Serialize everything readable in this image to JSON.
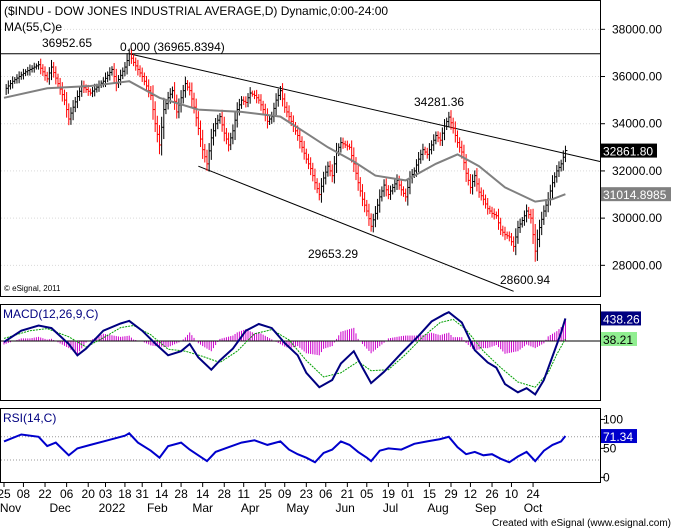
{
  "chart_data": {
    "type": "line",
    "title": "($INDU - DOW JONES INDUSTRIAL AVERAGE,D) Dynamic,0:00-24:00",
    "price_panel": {
      "ma_label": "MA(55,C)e",
      "ylim": [
        26700,
        39200
      ],
      "yticks": [
        28000,
        30000,
        32000,
        34000,
        36000,
        38000
      ],
      "ytick_labels": [
        "28000.00",
        "30000.00",
        "32000.00",
        "34000.00",
        "36000.00",
        "38000.00"
      ],
      "price_path": [
        [
          0,
          35400
        ],
        [
          4,
          35800
        ],
        [
          10,
          36200
        ],
        [
          16,
          36500
        ],
        [
          20,
          35900
        ],
        [
          22,
          36400
        ],
        [
          28,
          35000
        ],
        [
          30,
          34200
        ],
        [
          32,
          34700
        ],
        [
          36,
          35600
        ],
        [
          40,
          35300
        ],
        [
          46,
          35800
        ],
        [
          50,
          36300
        ],
        [
          52,
          35700
        ],
        [
          56,
          36400
        ],
        [
          58,
          36952.65
        ],
        [
          60,
          36600
        ],
        [
          64,
          36000
        ],
        [
          68,
          35200
        ],
        [
          70,
          34000
        ],
        [
          72,
          33100
        ],
        [
          74,
          34600
        ],
        [
          76,
          35100
        ],
        [
          78,
          35400
        ],
        [
          80,
          34500
        ],
        [
          82,
          35100
        ],
        [
          84,
          35700
        ],
        [
          86,
          35400
        ],
        [
          88,
          34700
        ],
        [
          90,
          33800
        ],
        [
          92,
          32900
        ],
        [
          94,
          32300
        ],
        [
          96,
          33400
        ],
        [
          98,
          34000
        ],
        [
          100,
          34300
        ],
        [
          102,
          33600
        ],
        [
          104,
          33100
        ],
        [
          106,
          33700
        ],
        [
          108,
          34600
        ],
        [
          110,
          35000
        ],
        [
          112,
          34900
        ],
        [
          114,
          35300
        ],
        [
          116,
          35200
        ],
        [
          118,
          35000
        ],
        [
          120,
          34600
        ],
        [
          122,
          34100
        ],
        [
          124,
          34300
        ],
        [
          126,
          35000
        ],
        [
          128,
          35400
        ],
        [
          130,
          34700
        ],
        [
          132,
          34300
        ],
        [
          134,
          33900
        ],
        [
          136,
          33500
        ],
        [
          138,
          33000
        ],
        [
          140,
          32500
        ],
        [
          142,
          32100
        ],
        [
          144,
          31500
        ],
        [
          146,
          31000
        ],
        [
          148,
          31700
        ],
        [
          150,
          32200
        ],
        [
          152,
          31800
        ],
        [
          154,
          32800
        ],
        [
          156,
          33200
        ],
        [
          158,
          33100
        ],
        [
          160,
          33000
        ],
        [
          162,
          32300
        ],
        [
          164,
          31500
        ],
        [
          166,
          30800
        ],
        [
          168,
          30300
        ],
        [
          170,
          29653.29
        ],
        [
          172,
          30200
        ],
        [
          174,
          30900
        ],
        [
          176,
          31400
        ],
        [
          178,
          31000
        ],
        [
          180,
          31300
        ],
        [
          182,
          31600
        ],
        [
          184,
          31200
        ],
        [
          186,
          30900
        ],
        [
          188,
          31700
        ],
        [
          190,
          32000
        ],
        [
          192,
          32500
        ],
        [
          194,
          32900
        ],
        [
          196,
          32700
        ],
        [
          198,
          33100
        ],
        [
          200,
          33500
        ],
        [
          202,
          33300
        ],
        [
          204,
          33900
        ],
        [
          206,
          34281.36
        ],
        [
          208,
          33800
        ],
        [
          210,
          33200
        ],
        [
          212,
          32800
        ],
        [
          214,
          31900
        ],
        [
          216,
          31300
        ],
        [
          218,
          31800
        ],
        [
          220,
          31100
        ],
        [
          222,
          30800
        ],
        [
          224,
          30400
        ],
        [
          226,
          30200
        ],
        [
          228,
          30100
        ],
        [
          230,
          29500
        ],
        [
          232,
          29300
        ],
        [
          234,
          29200
        ],
        [
          236,
          28800
        ],
        [
          238,
          29600
        ],
        [
          240,
          29900
        ],
        [
          242,
          30300
        ],
        [
          244,
          30000
        ],
        [
          246,
          28600.94
        ],
        [
          248,
          29600
        ],
        [
          250,
          30300
        ],
        [
          252,
          30800
        ],
        [
          254,
          31500
        ],
        [
          256,
          32000
        ],
        [
          258,
          32300
        ],
        [
          260,
          32861.8
        ]
      ],
      "ma_path": [
        [
          0,
          35100
        ],
        [
          20,
          35500
        ],
        [
          40,
          35600
        ],
        [
          58,
          35800
        ],
        [
          72,
          35100
        ],
        [
          90,
          34600
        ],
        [
          110,
          34500
        ],
        [
          128,
          34300
        ],
        [
          140,
          33600
        ],
        [
          150,
          33000
        ],
        [
          162,
          32400
        ],
        [
          172,
          31800
        ],
        [
          186,
          31600
        ],
        [
          200,
          32300
        ],
        [
          210,
          32700
        ],
        [
          220,
          32200
        ],
        [
          232,
          31300
        ],
        [
          246,
          30700
        ],
        [
          254,
          30800
        ],
        [
          260,
          31014.8985
        ]
      ],
      "current_price_label": "32861.80",
      "current_ma_label": "31014.8985",
      "annotations": [
        {
          "text": "36952.65"
        },
        {
          "text": "0.000 (36965.8394)"
        },
        {
          "text": "34281.36"
        },
        {
          "text": "29653.29"
        },
        {
          "text": "28600.94"
        }
      ],
      "hline_value": 36965.84,
      "upper_trendline": [
        [
          58,
          36965.84
        ],
        [
          276,
          32400
        ]
      ],
      "lower_trendline": [
        [
          90,
          32200
        ],
        [
          236,
          26900
        ]
      ],
      "credit_left": "© eSignal, 2011"
    },
    "macd_panel": {
      "label": "MACD(12,26,9,C)",
      "macd_value_label": "438.26",
      "signal_value_label": "38.21",
      "ylim": [
        -1150,
        700
      ],
      "macd_path": [
        [
          0,
          -20
        ],
        [
          8,
          200
        ],
        [
          16,
          300
        ],
        [
          22,
          250
        ],
        [
          30,
          -60
        ],
        [
          34,
          -280
        ],
        [
          38,
          -150
        ],
        [
          46,
          200
        ],
        [
          54,
          340
        ],
        [
          58,
          390
        ],
        [
          64,
          200
        ],
        [
          70,
          -50
        ],
        [
          76,
          -280
        ],
        [
          82,
          -200
        ],
        [
          86,
          -60
        ],
        [
          90,
          -320
        ],
        [
          96,
          -560
        ],
        [
          100,
          -380
        ],
        [
          106,
          -150
        ],
        [
          112,
          200
        ],
        [
          118,
          330
        ],
        [
          124,
          250
        ],
        [
          130,
          -40
        ],
        [
          136,
          -280
        ],
        [
          140,
          -620
        ],
        [
          146,
          -900
        ],
        [
          152,
          -760
        ],
        [
          156,
          -440
        ],
        [
          162,
          -200
        ],
        [
          166,
          -520
        ],
        [
          170,
          -820
        ],
        [
          176,
          -600
        ],
        [
          184,
          -240
        ],
        [
          192,
          100
        ],
        [
          198,
          380
        ],
        [
          204,
          520
        ],
        [
          206,
          560
        ],
        [
          212,
          360
        ],
        [
          218,
          -180
        ],
        [
          224,
          -420
        ],
        [
          228,
          -520
        ],
        [
          232,
          -840
        ],
        [
          238,
          -1000
        ],
        [
          242,
          -920
        ],
        [
          246,
          -1040
        ],
        [
          250,
          -760
        ],
        [
          254,
          -300
        ],
        [
          258,
          160
        ],
        [
          260,
          438.26
        ]
      ],
      "signal_path": [
        [
          0,
          50
        ],
        [
          12,
          200
        ],
        [
          20,
          240
        ],
        [
          30,
          80
        ],
        [
          38,
          -120
        ],
        [
          46,
          60
        ],
        [
          54,
          260
        ],
        [
          60,
          300
        ],
        [
          68,
          120
        ],
        [
          76,
          -160
        ],
        [
          84,
          -200
        ],
        [
          92,
          -300
        ],
        [
          100,
          -420
        ],
        [
          108,
          -200
        ],
        [
          116,
          140
        ],
        [
          124,
          220
        ],
        [
          132,
          20
        ],
        [
          140,
          -380
        ],
        [
          148,
          -700
        ],
        [
          156,
          -620
        ],
        [
          164,
          -400
        ],
        [
          170,
          -580
        ],
        [
          178,
          -560
        ],
        [
          186,
          -260
        ],
        [
          194,
          80
        ],
        [
          202,
          360
        ],
        [
          208,
          420
        ],
        [
          214,
          220
        ],
        [
          222,
          -200
        ],
        [
          230,
          -520
        ],
        [
          238,
          -800
        ],
        [
          246,
          -900
        ],
        [
          252,
          -620
        ],
        [
          256,
          -260
        ],
        [
          260,
          38.21
        ]
      ]
    },
    "rsi_panel": {
      "label": "RSI(14,C)",
      "value_label": "71.34",
      "ylim": [
        -8,
        118
      ],
      "yticks": [
        0,
        50,
        100
      ],
      "ytick_labels": [
        "0",
        "50",
        "100"
      ],
      "guide_levels": [
        30,
        70
      ],
      "rsi_path": [
        [
          0,
          62
        ],
        [
          8,
          74
        ],
        [
          16,
          70
        ],
        [
          20,
          54
        ],
        [
          24,
          60
        ],
        [
          30,
          38
        ],
        [
          34,
          50
        ],
        [
          40,
          56
        ],
        [
          48,
          64
        ],
        [
          56,
          72
        ],
        [
          58,
          76
        ],
        [
          62,
          60
        ],
        [
          68,
          46
        ],
        [
          72,
          34
        ],
        [
          76,
          54
        ],
        [
          82,
          60
        ],
        [
          86,
          48
        ],
        [
          90,
          38
        ],
        [
          94,
          28
        ],
        [
          98,
          44
        ],
        [
          104,
          52
        ],
        [
          110,
          60
        ],
        [
          116,
          64
        ],
        [
          122,
          56
        ],
        [
          128,
          62
        ],
        [
          132,
          48
        ],
        [
          136,
          40
        ],
        [
          140,
          34
        ],
        [
          144,
          26
        ],
        [
          148,
          42
        ],
        [
          152,
          48
        ],
        [
          156,
          62
        ],
        [
          160,
          56
        ],
        [
          164,
          44
        ],
        [
          168,
          34
        ],
        [
          170,
          28
        ],
        [
          174,
          46
        ],
        [
          178,
          50
        ],
        [
          184,
          48
        ],
        [
          190,
          58
        ],
        [
          196,
          62
        ],
        [
          202,
          66
        ],
        [
          206,
          70
        ],
        [
          210,
          52
        ],
        [
          214,
          40
        ],
        [
          218,
          44
        ],
        [
          222,
          38
        ],
        [
          226,
          40
        ],
        [
          230,
          32
        ],
        [
          234,
          26
        ],
        [
          238,
          36
        ],
        [
          242,
          44
        ],
        [
          246,
          28
        ],
        [
          250,
          46
        ],
        [
          254,
          56
        ],
        [
          258,
          62
        ],
        [
          260,
          71.34
        ]
      ]
    },
    "x_axis": {
      "total_days": 276,
      "day_ticks": [
        {
          "label": "25",
          "day": 0
        },
        {
          "label": "08",
          "day": 9
        },
        {
          "label": "22",
          "day": 19
        },
        {
          "label": "06",
          "day": 29
        },
        {
          "label": "20",
          "day": 39
        },
        {
          "label": "03",
          "day": 47
        },
        {
          "label": "18",
          "day": 56
        },
        {
          "label": "31",
          "day": 64
        },
        {
          "label": "14",
          "day": 73
        },
        {
          "label": "28",
          "day": 82
        },
        {
          "label": "14",
          "day": 92
        },
        {
          "label": "28",
          "day": 102
        },
        {
          "label": "11",
          "day": 111
        },
        {
          "label": "25",
          "day": 121
        },
        {
          "label": "09",
          "day": 130
        },
        {
          "label": "23",
          "day": 140
        },
        {
          "label": "06",
          "day": 149
        },
        {
          "label": "21",
          "day": 159
        },
        {
          "label": "05",
          "day": 168
        },
        {
          "label": "19",
          "day": 178
        },
        {
          "label": "01",
          "day": 187
        },
        {
          "label": "15",
          "day": 197
        },
        {
          "label": "29",
          "day": 207
        },
        {
          "label": "12",
          "day": 216
        },
        {
          "label": "26",
          "day": 226
        },
        {
          "label": "10",
          "day": 235
        },
        {
          "label": "24",
          "day": 245
        }
      ],
      "month_labels": [
        {
          "label": "Nov",
          "day": 3
        },
        {
          "label": "Dec",
          "day": 26
        },
        {
          "label": "2022",
          "day": 50
        },
        {
          "label": "Feb",
          "day": 71
        },
        {
          "label": "Mar",
          "day": 92
        },
        {
          "label": "Apr",
          "day": 114
        },
        {
          "label": "May",
          "day": 136
        },
        {
          "label": "Jun",
          "day": 158
        },
        {
          "label": "Jul",
          "day": 179
        },
        {
          "label": "Aug",
          "day": 201
        },
        {
          "label": "Sep",
          "day": 223
        },
        {
          "label": "Oct",
          "day": 245
        }
      ]
    },
    "footer_credit": "Created with eSignal (www.esignal.com)",
    "colors": {
      "price_up": "#000000",
      "price_down": "#ff0000",
      "ma": "#808080",
      "macd_line": "#000080",
      "signal_line": "#00a000",
      "histogram": "#cc00cc",
      "rsi": "#0000cc",
      "price_tag_bg": "#000000",
      "ma_tag_bg": "#808080",
      "macd_tag_bg": "#000080",
      "signal_tag_bg": "#90ee90",
      "rsi_tag_bg": "#0000cc"
    }
  }
}
